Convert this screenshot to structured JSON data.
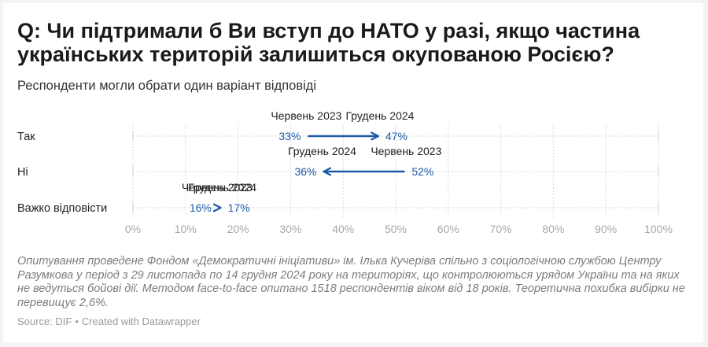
{
  "header": {
    "title": "Q: Чи підтримали б Ви вступ до НАТО у разі, якщо частина українських територій залишиться окупованою Росією?",
    "subtitle": "Респонденти могли обрати один варіант відповіді"
  },
  "notes": "Опитування проведене Фондом «Демократичні ініціативи» ім. Ілька Кучеріва спільно з соціологічною службою Центру Разумкова у період з 29 листопада по 14 грудня 2024 року на територіях, що контролюються урядом України та на яких не ведуться бойові дії. Методом face-to-face опитано 1518 респондентів віком від 18 років. Теоретична похибка вибірки не перевищує 2,6%.",
  "source": {
    "source_text": "Source: DIF",
    "separator": "•",
    "credit": "Created with Datawrapper"
  },
  "colors": {
    "arrow": "#1e5aa8",
    "value_label": "#1e5aa8",
    "grid": "#d9d9d9",
    "axis_tick": "#a8a8a8",
    "category_label": "#222222"
  },
  "chart_data": {
    "type": "arrow-plot",
    "xlim": [
      0,
      100
    ],
    "x_ticks": [
      0,
      10,
      20,
      30,
      40,
      50,
      60,
      70,
      80,
      90,
      100
    ],
    "tick_suffix": "%",
    "series": [
      {
        "name": "Червень 2023"
      },
      {
        "name": "Грудень 2024"
      }
    ],
    "rows": [
      {
        "category": "Так",
        "start": 33,
        "end": 47,
        "start_label": "33%",
        "end_label": "47%",
        "start_period": "Червень 2023",
        "end_period": "Грудень 2024"
      },
      {
        "category": "Ні",
        "start": 52,
        "end": 36,
        "start_label": "52%",
        "end_label": "36%",
        "start_period": "Червень 2023",
        "end_period": "Грудень 2024"
      },
      {
        "category": "Важко відповісти",
        "start": 16,
        "end": 17,
        "start_label": "16%",
        "end_label": "17%",
        "start_period": "Червень 2023",
        "end_period": "Грудень 2024"
      }
    ]
  }
}
